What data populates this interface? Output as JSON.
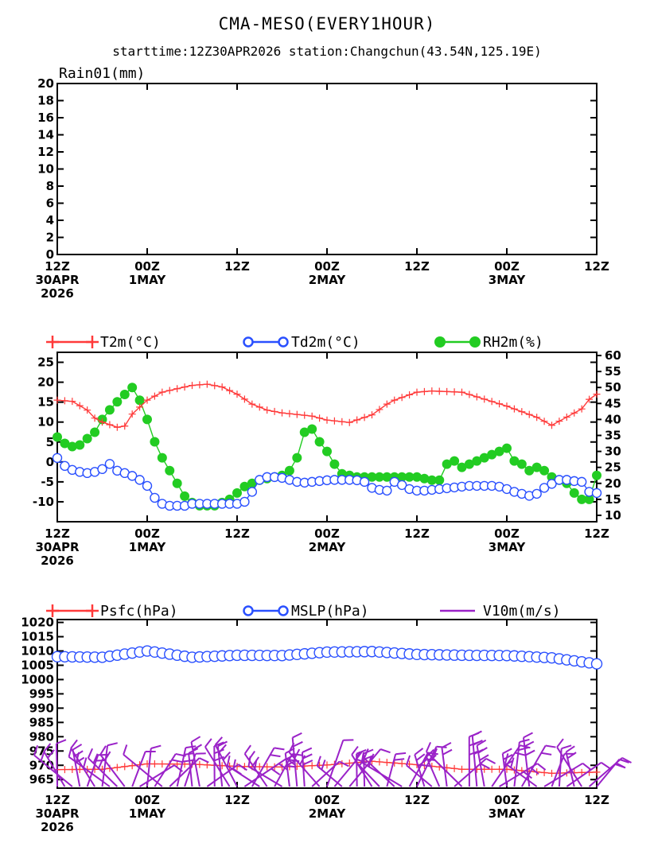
{
  "title": "CMA-MESO(EVERY1HOUR)",
  "subtitle": "starttime:12Z30APR2026   station:Changchun(43.54N,125.19E)",
  "x_axis": {
    "hours": [
      0,
      12,
      24,
      36,
      48,
      60,
      72
    ],
    "labels": [
      [
        "12Z",
        "30APR",
        "2026"
      ],
      [
        "00Z",
        "1MAY"
      ],
      [
        "12Z"
      ],
      [
        "00Z",
        "2MAY"
      ],
      [
        "12Z"
      ],
      [
        "00Z",
        "3MAY"
      ],
      [
        "12Z"
      ]
    ]
  },
  "chart_data": [
    {
      "type": "bar",
      "panel_label": "Rain01(mm)",
      "ylim": [
        0,
        20
      ],
      "yticks": [
        0,
        2,
        4,
        6,
        8,
        10,
        12,
        14,
        16,
        18,
        20
      ],
      "series": [
        {
          "name": "Rain01(mm)",
          "values": []
        }
      ]
    },
    {
      "type": "line",
      "left_ylim": [
        -15,
        27.5
      ],
      "left_yticks": [
        -10,
        -5,
        0,
        5,
        10,
        15,
        20,
        25
      ],
      "right_ylim": [
        8,
        61
      ],
      "right_yticks": [
        10,
        15,
        20,
        25,
        30,
        35,
        40,
        45,
        50,
        55,
        60
      ],
      "series": [
        {
          "name": "T2m(°C)",
          "axis": "left",
          "color": "#ff3a3a",
          "marker": "plus",
          "hours": [
            0,
            2,
            4,
            5,
            6,
            8,
            9,
            10,
            12,
            14,
            17,
            18,
            20,
            22,
            24,
            26,
            28,
            30,
            32,
            34,
            36,
            39,
            42,
            44,
            45,
            48,
            50,
            54,
            60,
            64,
            66,
            70,
            71,
            72
          ],
          "values": [
            15.5,
            15.2,
            13,
            11,
            10,
            8.7,
            9,
            12,
            15.5,
            17.5,
            18.8,
            19.2,
            19.5,
            18.8,
            17,
            14.5,
            13,
            12.3,
            11.9,
            11.5,
            10.5,
            9.9,
            11.8,
            14.5,
            15.5,
            17.5,
            17.8,
            17.5,
            14,
            11.2,
            9.2,
            13.3,
            15.7,
            17
          ]
        },
        {
          "name": "Td2m(°C)",
          "axis": "left",
          "color": "#2a50ff",
          "marker": "circle",
          "hours": [
            0,
            1,
            2,
            3,
            4,
            5,
            6,
            7,
            8,
            9,
            10,
            11,
            12,
            13,
            14,
            15,
            16,
            17,
            18,
            19,
            20,
            21,
            22,
            23,
            24,
            25,
            26,
            27,
            28,
            29,
            30,
            31,
            32,
            33,
            34,
            35,
            36,
            37,
            38,
            39,
            40,
            41,
            42,
            43,
            44,
            45,
            46,
            47,
            48,
            49,
            50,
            51,
            52,
            53,
            54,
            55,
            56,
            57,
            58,
            59,
            60,
            61,
            62,
            63,
            64,
            65,
            66,
            67,
            68,
            69,
            70,
            71,
            72
          ],
          "values": [
            1,
            -1,
            -2,
            -2.5,
            -2.8,
            -2.5,
            -1.8,
            -0.5,
            -2.2,
            -2.8,
            -3.5,
            -4.5,
            -6,
            -9,
            -10.5,
            -11,
            -11,
            -11,
            -10.5,
            -10.5,
            -10.5,
            -10.5,
            -10.5,
            -10.5,
            -10.5,
            -10,
            -7.5,
            -4.5,
            -3.8,
            -3.8,
            -4,
            -4.5,
            -5,
            -5.2,
            -5,
            -4.8,
            -4.6,
            -4.5,
            -4.5,
            -4.5,
            -4.6,
            -5,
            -6.5,
            -7,
            -7.2,
            -5,
            -5.8,
            -6.8,
            -7.2,
            -7.2,
            -7,
            -6.8,
            -6.6,
            -6.4,
            -6.2,
            -6,
            -6,
            -6,
            -6,
            -6.2,
            -6.8,
            -7.5,
            -8,
            -8.5,
            -8,
            -6.5,
            -5.5,
            -4.5,
            -4.5,
            -4.8,
            -5,
            -7.5,
            -7.8
          ]
        },
        {
          "name": "RH2m(%)",
          "axis": "right",
          "color": "#22cc22",
          "marker": "dot",
          "hours": [
            0,
            1,
            2,
            3,
            4,
            5,
            6,
            7,
            8,
            9,
            10,
            11,
            12,
            13,
            14,
            15,
            16,
            17,
            18,
            19,
            20,
            21,
            22,
            23,
            24,
            25,
            26,
            27,
            28,
            29,
            30,
            31,
            32,
            33,
            34,
            35,
            36,
            37,
            38,
            39,
            40,
            41,
            42,
            43,
            44,
            45,
            46,
            47,
            48,
            49,
            50,
            51,
            52,
            53,
            54,
            55,
            56,
            57,
            58,
            59,
            60,
            61,
            62,
            63,
            64,
            65,
            66,
            67,
            68,
            69,
            70,
            71,
            72
          ],
          "values": [
            34.5,
            32.5,
            31.5,
            32,
            34,
            36,
            40,
            43,
            45.5,
            47.8,
            50,
            46,
            40,
            33,
            28,
            24,
            20,
            16,
            14,
            13,
            13,
            13,
            14,
            15,
            17,
            19,
            20,
            21,
            21.5,
            22,
            22.5,
            24,
            28,
            36,
            37,
            33,
            30,
            26,
            23,
            22.5,
            22,
            22,
            22,
            22,
            22,
            22,
            22,
            22,
            22,
            21.5,
            21,
            21,
            26,
            27,
            25,
            26,
            27,
            28,
            29,
            30,
            31,
            27,
            26,
            24,
            25,
            24,
            22,
            21,
            20,
            17,
            15,
            15,
            22.5
          ]
        }
      ]
    },
    {
      "type": "line",
      "ylim": [
        962,
        1021
      ],
      "yticks": [
        965,
        970,
        975,
        980,
        985,
        990,
        995,
        1000,
        1005,
        1010,
        1015,
        1020
      ],
      "series": [
        {
          "name": "Psfc(hPa)",
          "color": "#ff3a3a",
          "marker": "plus",
          "hours": [
            0,
            6,
            12,
            18,
            24,
            30,
            36,
            42,
            48,
            54,
            60,
            66,
            72
          ],
          "values": [
            968.5,
            968.6,
            970.5,
            970.4,
            969.6,
            969.4,
            970.1,
            971.4,
            970.2,
            968.6,
            968.6,
            967.2,
            967.6
          ]
        },
        {
          "name": "MSLP(hPa)",
          "color": "#2a50ff",
          "marker": "circle",
          "hours": [
            0,
            6,
            12,
            18,
            24,
            30,
            36,
            42,
            48,
            54,
            60,
            66,
            72
          ],
          "values": [
            1008,
            1007.8,
            1010,
            1007.8,
            1008.5,
            1008.4,
            1009.6,
            1009.8,
            1008.8,
            1008.5,
            1008.4,
            1007.6,
            1005.5
          ]
        },
        {
          "name": "V10m(m/s)",
          "color": "#9a22c8",
          "marker": "barb",
          "values": []
        }
      ]
    }
  ]
}
